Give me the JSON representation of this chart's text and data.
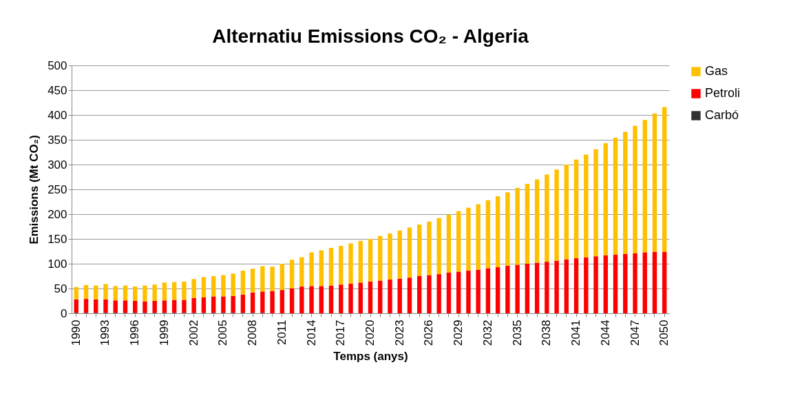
{
  "chart_data": {
    "type": "bar",
    "title": "Alternatiu Emissions CO₂ - Algeria",
    "xlabel": "Temps (anys)",
    "ylabel": "Emissions (Mt CO₂)",
    "categories": [
      "1990",
      null,
      null,
      "1993",
      null,
      null,
      "1996",
      null,
      null,
      "1999",
      null,
      null,
      "2002",
      null,
      null,
      "2005",
      null,
      null,
      "2008",
      null,
      null,
      "2011",
      null,
      null,
      "2014",
      null,
      null,
      "2017",
      null,
      null,
      "2020",
      null,
      null,
      "2023",
      null,
      null,
      "2026",
      null,
      null,
      "2029",
      null,
      null,
      "2032",
      null,
      null,
      "2035",
      null,
      null,
      "2038",
      null,
      null,
      "2041",
      null,
      null,
      "2044",
      null,
      null,
      "2047",
      null,
      null,
      "2050"
    ],
    "stacked": true,
    "ylim": [
      0,
      500
    ],
    "yticks": [
      0,
      50,
      100,
      150,
      200,
      250,
      300,
      350,
      400,
      450,
      500
    ],
    "grid": "y",
    "legend": "right",
    "series": [
      {
        "name": "Carbó",
        "color": "#333333",
        "values": [
          1,
          1,
          1,
          1,
          1,
          1,
          1,
          1,
          1,
          1,
          1,
          1,
          1,
          1,
          1,
          1,
          1,
          1,
          1,
          1,
          0,
          0,
          0,
          0,
          0,
          0,
          0,
          0,
          0,
          0,
          0,
          0,
          0,
          0,
          0,
          0,
          0,
          0,
          0,
          0,
          0,
          0,
          0,
          0,
          0,
          0,
          0,
          0,
          0,
          0,
          0,
          0,
          0,
          0,
          0,
          0,
          0,
          0,
          0,
          0,
          0
        ]
      },
      {
        "name": "Petroli",
        "color": "#ff0000",
        "values": [
          27,
          28,
          27,
          27,
          25,
          25,
          24,
          23,
          24,
          25,
          26,
          26,
          30,
          31,
          33,
          33,
          34,
          37,
          41,
          43,
          45,
          47,
          50,
          54,
          55,
          55,
          56,
          58,
          60,
          62,
          64,
          66,
          68,
          70,
          72,
          75,
          77,
          79,
          82,
          84,
          86,
          88,
          91,
          93,
          96,
          98,
          100,
          102,
          104,
          106,
          109,
          111,
          113,
          115,
          117,
          118,
          120,
          121,
          123,
          124,
          124
        ]
      },
      {
        "name": "Gas",
        "color": "#ffc000",
        "values": [
          25,
          28,
          28,
          31,
          29,
          30,
          29,
          32,
          33,
          36,
          36,
          37,
          38,
          41,
          41,
          43,
          45,
          48,
          48,
          51,
          49,
          53,
          58,
          59,
          68,
          72,
          76,
          78,
          81,
          84,
          86,
          90,
          93,
          97,
          101,
          104,
          108,
          113,
          117,
          122,
          127,
          132,
          137,
          143,
          148,
          155,
          161,
          168,
          176,
          184,
          191,
          199,
          207,
          216,
          226,
          236,
          246,
          257,
          267,
          279,
          292
        ]
      }
    ]
  }
}
